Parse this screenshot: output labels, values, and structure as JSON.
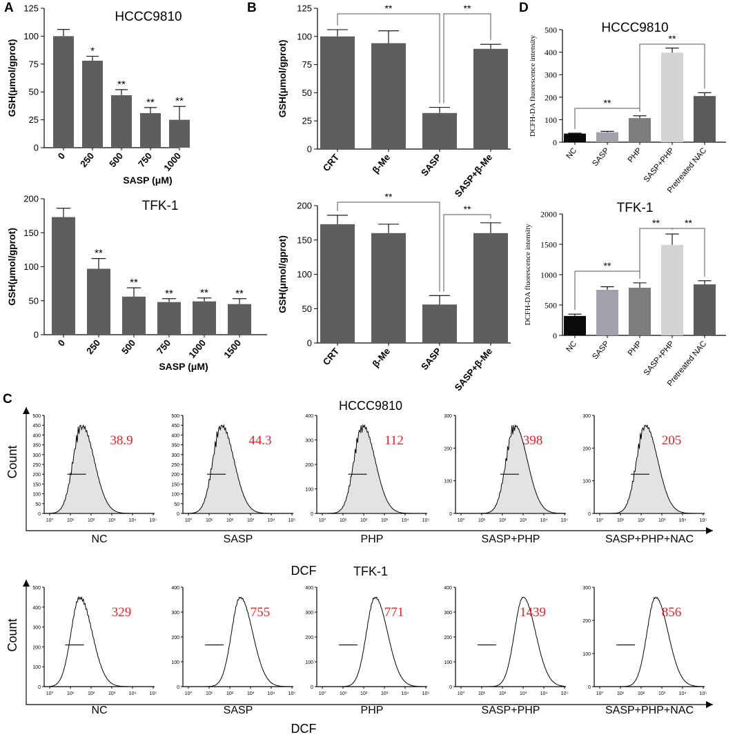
{
  "panel_letters": {
    "a": "A",
    "b": "B",
    "c": "C",
    "d": "D"
  },
  "colors": {
    "bar_dark": "#5e5e5e",
    "bar_black": "#0a0a0a",
    "bar_gray2": "#a3a0ab",
    "bar_gray3": "#7d7d7d",
    "bar_light": "#d3d3d3",
    "bar_dark2": "#5b5b5b",
    "value_red": "#e8202a"
  },
  "chart_data": [
    {
      "id": "A1",
      "type": "bar",
      "title": "HCCC9810",
      "categories": [
        "0",
        "250",
        "500",
        "750",
        "1000"
      ],
      "values": [
        100,
        78,
        47,
        31,
        25
      ],
      "errors": [
        6,
        4,
        5,
        5,
        12
      ],
      "significance": [
        "",
        "*",
        "**",
        "**",
        "**"
      ],
      "xlabel": "SASP (μM)",
      "ylabel": "GSH(μmol/gprot)",
      "ylim": [
        0,
        125
      ],
      "yticks": [
        "0",
        "25",
        "50",
        "75",
        "100",
        "125"
      ]
    },
    {
      "id": "A2",
      "type": "bar",
      "title": "TFK-1",
      "categories": [
        "0",
        "250",
        "500",
        "750",
        "1000",
        "1500"
      ],
      "values": [
        173,
        97,
        56,
        48,
        49,
        45
      ],
      "errors": [
        13,
        15,
        13,
        5,
        5,
        8
      ],
      "significance": [
        "",
        "**",
        "**",
        "**",
        "**",
        "**"
      ],
      "xlabel": "SASP (μM)",
      "ylabel": "GSH(μmol/gprot)",
      "ylim": [
        0,
        200
      ],
      "yticks": [
        "0",
        "50",
        "100",
        "150",
        "200"
      ]
    },
    {
      "id": "B1",
      "type": "bar",
      "title": "",
      "categories": [
        "CRT",
        "β-Me",
        "SASP",
        "SASP+β-Me"
      ],
      "values": [
        100,
        94,
        32,
        89
      ],
      "errors": [
        6,
        11,
        5,
        4
      ],
      "brackets": [
        {
          "from": 0,
          "to": 2,
          "label": "**"
        },
        {
          "from": 2,
          "to": 3,
          "label": "**"
        }
      ],
      "xlabel": "",
      "ylabel": "GSH(μmol/gprot)",
      "ylim": [
        0,
        125
      ],
      "yticks": [
        "0",
        "25",
        "50",
        "75",
        "100",
        "125"
      ]
    },
    {
      "id": "B2",
      "type": "bar",
      "title": "",
      "categories": [
        "CRT",
        "β-Me",
        "SASP",
        "SASP+β-Me"
      ],
      "values": [
        173,
        160,
        56,
        160
      ],
      "errors": [
        13,
        13,
        13,
        15
      ],
      "brackets": [
        {
          "from": 0,
          "to": 2,
          "label": "**"
        },
        {
          "from": 2,
          "to": 3,
          "label": "**"
        }
      ],
      "xlabel": "",
      "ylabel": "GSH(μmol/gprot)",
      "ylim": [
        0,
        200
      ],
      "yticks": [
        "0",
        "50",
        "100",
        "150",
        "200"
      ]
    },
    {
      "id": "D1",
      "type": "bar",
      "title": "HCCC9810",
      "categories": [
        "NC",
        "SASP",
        "PHP",
        "SASP+PHP",
        "Pretreated NAC"
      ],
      "values": [
        38,
        44,
        107,
        398,
        205
      ],
      "errors": [
        2,
        4,
        10,
        20,
        15
      ],
      "brackets": [
        {
          "from": 0,
          "to": 2,
          "label": "**"
        },
        {
          "from": 2,
          "to": 4,
          "label": "**"
        }
      ],
      "xlabel": "",
      "ylabel": "DCFH-DA fluorescence intensity",
      "ylim": [
        0,
        500
      ],
      "yticks": [
        "0",
        "100",
        "200",
        "300",
        "400",
        "500"
      ]
    },
    {
      "id": "D2",
      "type": "bar",
      "title": "TFK-1",
      "categories": [
        "NC",
        "SASP",
        "PHP",
        "SASP+PHP",
        "Pretreated NAC"
      ],
      "values": [
        320,
        750,
        785,
        1490,
        840
      ],
      "errors": [
        30,
        50,
        80,
        180,
        60
      ],
      "brackets": [
        {
          "from": 0,
          "to": 2,
          "label": "**"
        },
        {
          "from": 2,
          "to": 3,
          "label": "**"
        },
        {
          "from": 3,
          "to": 4,
          "label": "**"
        }
      ],
      "xlabel": "",
      "ylabel": "DCFH-DA fluorescence intensity",
      "ylim": [
        0,
        2000
      ],
      "yticks": [
        "0",
        "500",
        "1000",
        "1500",
        "2000"
      ]
    },
    {
      "id": "C1",
      "type": "histogram",
      "title": "HCCC9810",
      "xlabel": "DCF",
      "ylabel": "Count",
      "x_ticks": [
        "10⁰",
        "10¹",
        "10²",
        "10³",
        "10⁴",
        "10⁵"
      ],
      "samples": [
        {
          "label": "NC",
          "value": "38.9",
          "ymax": 500,
          "peak": 1.55,
          "yticks": [
            "0",
            "50",
            "100",
            "150",
            "200",
            "250",
            "300",
            "350",
            "400",
            "450",
            "500"
          ]
        },
        {
          "label": "SASP",
          "value": "44.3",
          "ymax": 500,
          "peak": 1.6,
          "yticks": [
            "0",
            "50",
            "100",
            "150",
            "200",
            "250",
            "300",
            "350",
            "400",
            "450",
            "500"
          ]
        },
        {
          "label": "PHP",
          "value": "112",
          "ymax": 400,
          "peak": 1.95,
          "yticks": [
            "0",
            "100",
            "200",
            "300",
            "400"
          ]
        },
        {
          "label": "SASP+PHP",
          "value": "398",
          "ymax": 300,
          "peak": 2.6,
          "yticks": [
            "0",
            "100",
            "200",
            "300"
          ]
        },
        {
          "label": "SASP+PHP+NAC",
          "value": "205",
          "ymax": 300,
          "peak": 2.2,
          "yticks": [
            "0",
            "100",
            "200",
            "300"
          ]
        }
      ]
    },
    {
      "id": "C2",
      "type": "histogram",
      "title": "TFK-1",
      "xlabel": "DCF",
      "ylabel": "Count",
      "x_ticks": [
        "10⁰",
        "10¹",
        "10²",
        "10³",
        "10⁴",
        "10⁵"
      ],
      "samples": [
        {
          "label": "NC",
          "value": "329",
          "ymax": 500,
          "peak": 1.45,
          "yticks": [
            "0",
            "100",
            "200",
            "300",
            "400",
            "500"
          ]
        },
        {
          "label": "SASP",
          "value": "755",
          "ymax": 400,
          "peak": 2.5,
          "yticks": [
            "0",
            "100",
            "200",
            "300",
            "400"
          ]
        },
        {
          "label": "PHP",
          "value": "771",
          "ymax": 400,
          "peak": 2.55,
          "yticks": [
            "0",
            "100",
            "200",
            "300",
            "400"
          ]
        },
        {
          "label": "SASP+PHP",
          "value": "1439",
          "ymax": 400,
          "peak": 3.0,
          "yticks": [
            "0",
            "100",
            "200",
            "300",
            "400"
          ]
        },
        {
          "label": "SASP+PHP+NAC",
          "value": "856",
          "ymax": 300,
          "peak": 2.7,
          "yticks": [
            "0",
            "100",
            "200",
            "300"
          ]
        }
      ]
    }
  ]
}
